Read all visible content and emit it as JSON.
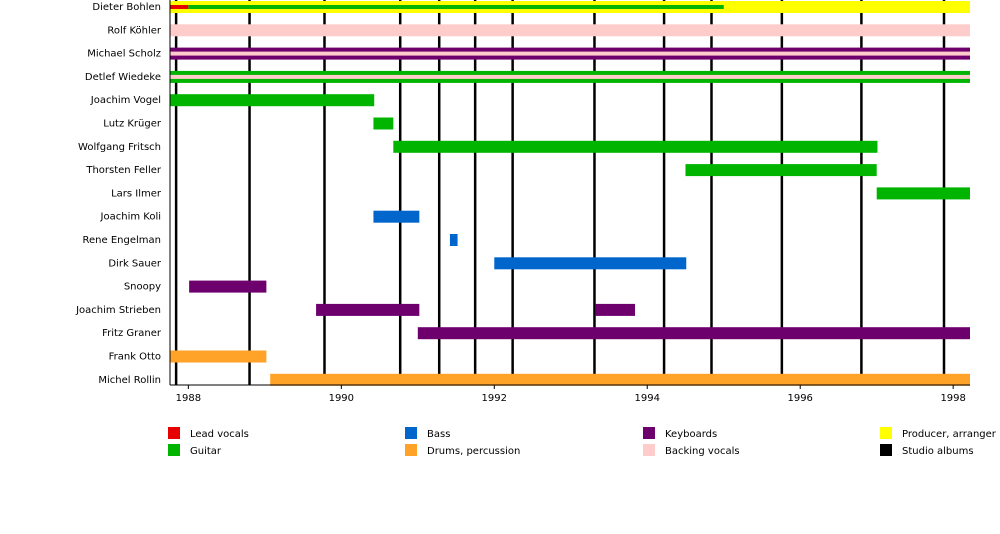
{
  "chart_data": {
    "type": "timeline",
    "xlim": [
      1987.76,
      1998.22
    ],
    "xticks": [
      1988,
      1990,
      1992,
      1994,
      1996,
      1998
    ],
    "roles": [
      {
        "name": "Lead vocals",
        "color": "#e60000"
      },
      {
        "name": "Guitar",
        "color": "#00b400"
      },
      {
        "name": "Bass",
        "color": "#0066cc"
      },
      {
        "name": "Drums, percussion",
        "color": "#ffa228"
      },
      {
        "name": "Keyboards",
        "color": "#6e006e"
      },
      {
        "name": "Backing vocals",
        "color": "#ffcccc"
      },
      {
        "name": "Producer, arranger",
        "color": "#ffff00"
      }
    ],
    "albums": {
      "name": "Studio albums",
      "color": "#000000",
      "values": [
        1987.84,
        1988.8,
        1989.78,
        1990.77,
        1991.28,
        1991.75,
        1992.24,
        1993.31,
        1994.22,
        1994.84,
        1995.76,
        1996.8,
        1997.88
      ]
    },
    "rows": [
      {
        "name": "Dieter Bohlen",
        "periods": [
          {
            "role": "Producer, arranger",
            "start": 1987.76,
            "end": 1998.22
          },
          {
            "role": "Lead vocals",
            "start": 1987.76,
            "end": 1988.0
          },
          {
            "role": "Guitar",
            "start": 1988.0,
            "end": 1995.0
          }
        ]
      },
      {
        "name": "Rolf Köhler",
        "periods": [
          {
            "role": "Backing vocals",
            "start": 1987.76,
            "end": 1998.22
          }
        ]
      },
      {
        "name": "Michael Scholz",
        "periods": [
          {
            "role": "Keyboards",
            "start": 1987.76,
            "end": 1998.22
          },
          {
            "role": "Backing vocals",
            "start": 1987.76,
            "end": 1998.22
          }
        ]
      },
      {
        "name": "Detlef Wiedeke",
        "periods": [
          {
            "role": "Guitar",
            "start": 1987.76,
            "end": 1998.22
          },
          {
            "role": "Backing vocals",
            "start": 1987.76,
            "end": 1998.22
          }
        ]
      },
      {
        "name": "Joachim Vogel",
        "periods": [
          {
            "role": "Guitar",
            "start": 1987.76,
            "end": 1990.43
          }
        ]
      },
      {
        "name": "Lutz Krüger",
        "periods": [
          {
            "role": "Guitar",
            "start": 1990.42,
            "end": 1990.68
          }
        ]
      },
      {
        "name": "Wolfgang Fritsch",
        "periods": [
          {
            "role": "Guitar",
            "start": 1990.68,
            "end": 1997.01
          }
        ]
      },
      {
        "name": "Thorsten Feller",
        "periods": [
          {
            "role": "Guitar",
            "start": 1994.5,
            "end": 1997.0
          }
        ]
      },
      {
        "name": "Lars Ilmer",
        "periods": [
          {
            "role": "Guitar",
            "start": 1997.0,
            "end": 1998.22
          }
        ]
      },
      {
        "name": "Joachim Koli",
        "periods": [
          {
            "role": "Bass",
            "start": 1990.42,
            "end": 1991.02
          }
        ]
      },
      {
        "name": "Rene Engelman",
        "periods": [
          {
            "role": "Bass",
            "start": 1991.42,
            "end": 1991.52
          }
        ]
      },
      {
        "name": "Dirk Sauer",
        "periods": [
          {
            "role": "Bass",
            "start": 1992.0,
            "end": 1994.51
          }
        ]
      },
      {
        "name": "Snoopy",
        "periods": [
          {
            "role": "Keyboards",
            "start": 1988.01,
            "end": 1989.02
          }
        ]
      },
      {
        "name": "Joachim Strieben",
        "periods": [
          {
            "role": "Keyboards",
            "start": 1989.67,
            "end": 1991.02
          },
          {
            "role": "Keyboards",
            "start": 1993.32,
            "end": 1993.84
          }
        ]
      },
      {
        "name": "Fritz Graner",
        "periods": [
          {
            "role": "Keyboards",
            "start": 1991.0,
            "end": 1998.22
          }
        ]
      },
      {
        "name": "Frank Otto",
        "periods": [
          {
            "role": "Drums, percussion",
            "start": 1987.76,
            "end": 1989.02
          }
        ]
      },
      {
        "name": "Michel Rollin",
        "periods": [
          {
            "role": "Drums, percussion",
            "start": 1989.07,
            "end": 1998.22
          }
        ]
      }
    ]
  }
}
